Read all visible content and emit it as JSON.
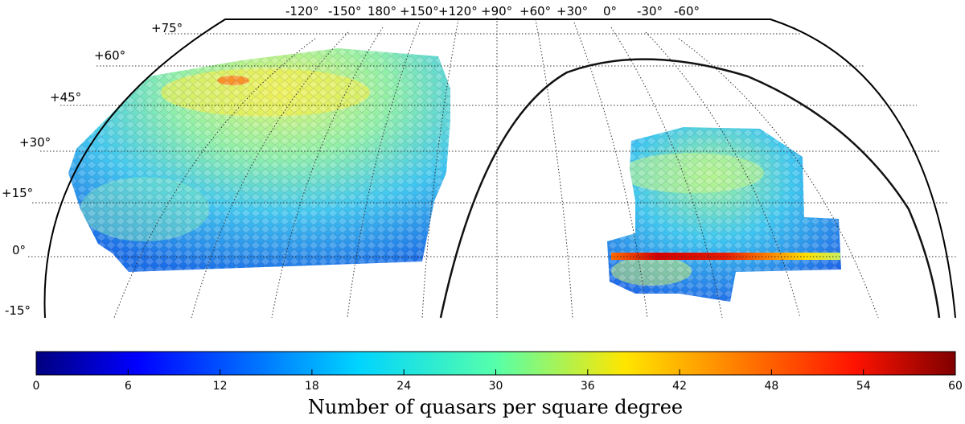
{
  "projection": "Hammer-Aitoff (truncated at -15° declination)",
  "longitude_labels": [
    "-120°",
    "-150°",
    "180°",
    "+150°",
    "+120°",
    "+90°",
    "+60°",
    "+30°",
    "0°",
    "-30°",
    "-60°"
  ],
  "latitude_labels": [
    "+75°",
    "+60°",
    "+45°",
    "+30°",
    "+15°",
    "0°",
    "-15°"
  ],
  "colormap": {
    "name": "jet",
    "ticks": [
      "0",
      "6",
      "12",
      "18",
      "24",
      "30",
      "36",
      "42",
      "48",
      "54",
      "60"
    ],
    "vmin": 0,
    "vmax": 60,
    "label": "Number of quasars per square degree"
  },
  "regions": [
    {
      "name": "ngc-footprint",
      "typical_density": 20,
      "hotspot_density": 38
    },
    {
      "name": "sgc-footprint",
      "typical_density": 18,
      "stripe_82_density": 55
    }
  ],
  "overlays": [
    "graticule (dotted)",
    "galactic plane (solid curve)"
  ],
  "colors": {
    "outline": "#000000",
    "grid": "#333333",
    "background": "#ffffff"
  }
}
